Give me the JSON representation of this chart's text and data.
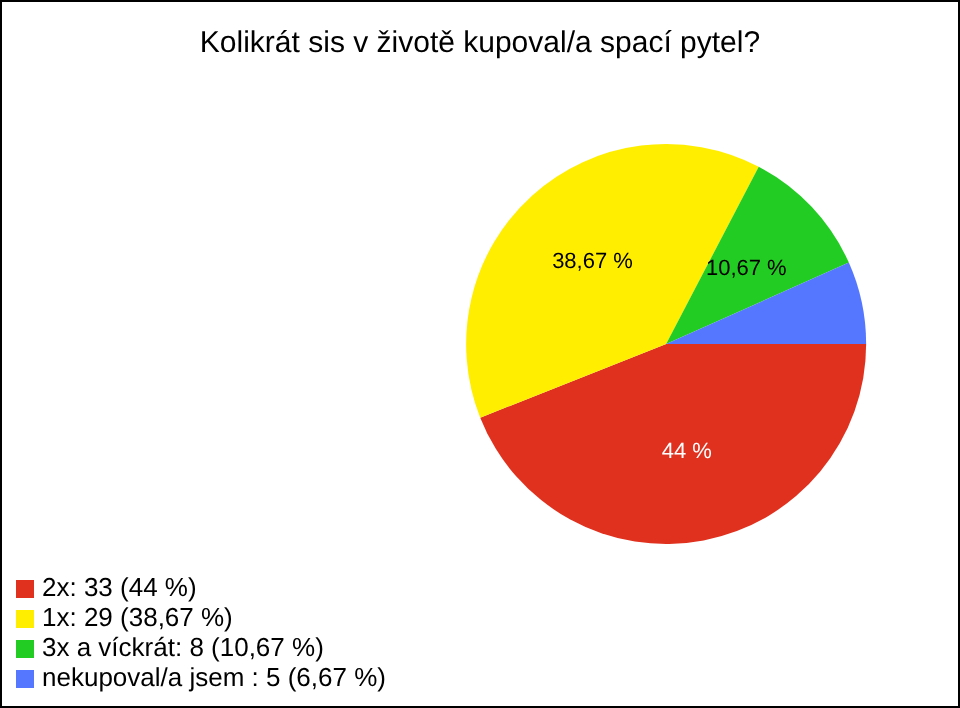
{
  "chart_data": {
    "type": "pie",
    "title": "Kolikrát sis v životě kupoval/a spací pytel?",
    "categories": [
      "2x: 33 (44 %)",
      "1x: 29 (38,67 %)",
      "3x a víckrát: 8 (10,67 %)",
      "nekupoval/a jsem : 5 (6,67 %)"
    ],
    "values": [
      44,
      38.67,
      10.67,
      6.67
    ],
    "colors": [
      "#e0301e",
      "#ffee00",
      "#22cc22",
      "#5577ff"
    ],
    "value_labels": [
      "44 %",
      "38,67 %",
      "10,67 %",
      null
    ],
    "legend": "bottom left"
  }
}
